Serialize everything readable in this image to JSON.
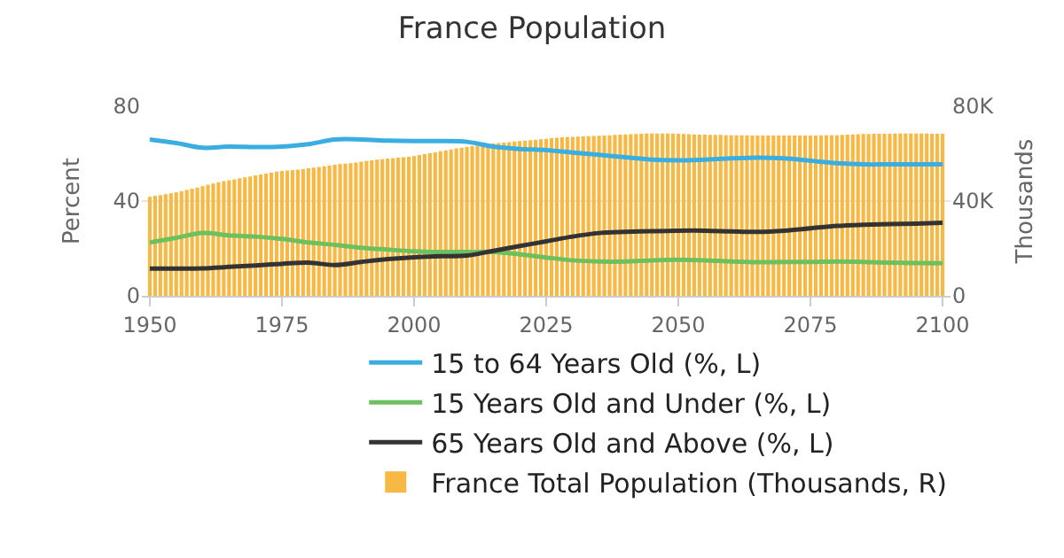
{
  "chart_data": {
    "type": "line",
    "title": "France Population",
    "ylabel": "Percent",
    "y2label": "Thousands",
    "xlim": [
      1948.5,
      2101.5
    ],
    "xticks": [
      1950,
      1975,
      2000,
      2025,
      2050,
      2075,
      2100
    ],
    "ylim": [
      0,
      80
    ],
    "yticks": [
      0,
      40,
      80
    ],
    "y2lim": [
      0,
      80000
    ],
    "y2ticks": [
      0,
      {
        "value": 40000,
        "label": "40K"
      },
      {
        "value": 80000,
        "label": "80K"
      }
    ],
    "grid": "y",
    "legend": "bottom",
    "marker": "none",
    "line_style": "solid",
    "series": [
      {
        "name": "15 to 64 Years Old (%, L)",
        "color": "#3aaee0",
        "x": [
          1950,
          1955,
          1960,
          1965,
          1970,
          1975,
          1980,
          1985,
          1990,
          1995,
          2000,
          2005,
          2010,
          2015,
          2020,
          2025,
          2030,
          2035,
          2040,
          2045,
          2050,
          2055,
          2060,
          2065,
          2070,
          2075,
          2080,
          2085,
          2090,
          2095,
          2100
        ],
        "values": [
          66,
          64.5,
          62.5,
          63,
          62.8,
          63,
          64,
          66,
          66,
          65.5,
          65.3,
          65.3,
          65,
          63,
          62,
          61.5,
          60.5,
          59.5,
          58.5,
          57.5,
          57.2,
          57.5,
          58,
          58.3,
          58,
          57,
          56,
          55.5,
          55.5,
          55.5,
          55.5
        ]
      },
      {
        "name": "15 Years Old and Under (%, L)",
        "color": "#6cc15e",
        "x": [
          1950,
          1955,
          1960,
          1965,
          1970,
          1975,
          1980,
          1985,
          1990,
          1995,
          2000,
          2005,
          2010,
          2015,
          2020,
          2025,
          2030,
          2035,
          2040,
          2045,
          2050,
          2055,
          2060,
          2065,
          2070,
          2075,
          2080,
          2085,
          2090,
          2095,
          2100
        ],
        "values": [
          22.5,
          24.5,
          26.5,
          25.5,
          25,
          24,
          22.5,
          21.5,
          20.3,
          19.5,
          18.8,
          18.5,
          18.5,
          18.5,
          17.5,
          16.2,
          15,
          14.5,
          14.5,
          15,
          15.2,
          15,
          14.5,
          14.2,
          14.3,
          14.3,
          14.5,
          14.3,
          14,
          13.8,
          13.7
        ]
      },
      {
        "name": "65 Years Old and Above (%, L)",
        "color": "#333333",
        "x": [
          1950,
          1955,
          1960,
          1965,
          1970,
          1975,
          1980,
          1985,
          1990,
          1995,
          2000,
          2005,
          2010,
          2015,
          2020,
          2025,
          2030,
          2035,
          2040,
          2045,
          2050,
          2055,
          2060,
          2065,
          2070,
          2075,
          2080,
          2085,
          2090,
          2095,
          2100
        ],
        "values": [
          11.5,
          11.5,
          11.6,
          12.2,
          12.8,
          13.5,
          14,
          13,
          14.3,
          15.5,
          16.3,
          16.7,
          17,
          19,
          21,
          23,
          25,
          26.5,
          27,
          27.3,
          27.5,
          27.5,
          27.2,
          27,
          27.5,
          28.5,
          29.5,
          30,
          30.3,
          30.5,
          30.8
        ]
      },
      {
        "name": "France Total Population (Thousands, R)",
        "type": "bar",
        "axis": "y2",
        "color": "#f7b944",
        "x": [
          1950,
          1951,
          1952,
          1953,
          1954,
          1955,
          1956,
          1957,
          1958,
          1959,
          1960,
          1961,
          1962,
          1963,
          1964,
          1965,
          1966,
          1967,
          1968,
          1969,
          1970,
          1971,
          1972,
          1973,
          1974,
          1975,
          1976,
          1977,
          1978,
          1979,
          1980,
          1981,
          1982,
          1983,
          1984,
          1985,
          1986,
          1987,
          1988,
          1989,
          1990,
          1991,
          1992,
          1993,
          1994,
          1995,
          1996,
          1997,
          1998,
          1999,
          2000,
          2001,
          2002,
          2003,
          2004,
          2005,
          2006,
          2007,
          2008,
          2009,
          2010,
          2011,
          2012,
          2013,
          2014,
          2015,
          2016,
          2017,
          2018,
          2019,
          2020,
          2021,
          2022,
          2023,
          2024,
          2025,
          2026,
          2027,
          2028,
          2029,
          2030,
          2031,
          2032,
          2033,
          2034,
          2035,
          2036,
          2037,
          2038,
          2039,
          2040,
          2041,
          2042,
          2043,
          2044,
          2045,
          2046,
          2047,
          2048,
          2049,
          2050,
          2051,
          2052,
          2053,
          2054,
          2055,
          2056,
          2057,
          2058,
          2059,
          2060,
          2061,
          2062,
          2063,
          2064,
          2065,
          2066,
          2067,
          2068,
          2069,
          2070,
          2071,
          2072,
          2073,
          2074,
          2075,
          2076,
          2077,
          2078,
          2079,
          2080,
          2081,
          2082,
          2083,
          2084,
          2085,
          2086,
          2087,
          2088,
          2089,
          2090,
          2091,
          2092,
          2093,
          2094,
          2095,
          2096,
          2097,
          2098,
          2099,
          2100
        ],
        "values": [
          41800,
          42200,
          42500,
          42900,
          43300,
          43700,
          44200,
          44700,
          45200,
          45700,
          46300,
          46900,
          47400,
          47900,
          48400,
          48800,
          49200,
          49600,
          50000,
          50400,
          50800,
          51200,
          51600,
          52000,
          52400,
          52700,
          52900,
          53100,
          53300,
          53500,
          53800,
          54100,
          54400,
          54700,
          55000,
          55300,
          55600,
          55800,
          56000,
          56300,
          56600,
          56900,
          57200,
          57500,
          57700,
          57900,
          58100,
          58300,
          58500,
          58700,
          59000,
          59400,
          59800,
          60200,
          60600,
          61000,
          61400,
          61800,
          62200,
          62500,
          62900,
          63200,
          63500,
          63800,
          64100,
          64300,
          64500,
          64700,
          64900,
          65100,
          65300,
          65500,
          65700,
          65900,
          66100,
          66300,
          66500,
          66700,
          66900,
          67000,
          67100,
          67200,
          67300,
          67400,
          67500,
          67600,
          67700,
          67800,
          67900,
          68000,
          68100,
          68200,
          68300,
          68400,
          68500,
          68500,
          68500,
          68500,
          68500,
          68500,
          68400,
          68300,
          68200,
          68100,
          68000,
          68000,
          67900,
          67900,
          67900,
          67800,
          67800,
          67800,
          67800,
          67800,
          67700,
          67700,
          67700,
          67700,
          67700,
          67700,
          67700,
          67700,
          67700,
          67700,
          67700,
          67700,
          67700,
          67800,
          67800,
          67800,
          67800,
          67900,
          68000,
          68100,
          68200,
          68300,
          68300,
          68400,
          68400,
          68400,
          68400,
          68500,
          68500,
          68500,
          68500,
          68500,
          68500,
          68500,
          68400,
          68400,
          68400
        ]
      }
    ]
  }
}
